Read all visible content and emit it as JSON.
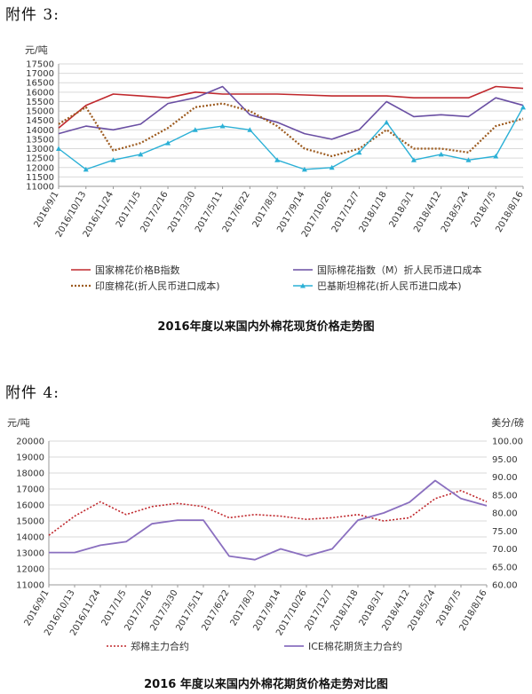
{
  "attachment3": {
    "label": "附件 3:",
    "caption": "2016年度以来国内外棉花现货价格走势图"
  },
  "attachment4": {
    "label": "附件 4:",
    "caption": "2016 年度以来国内外棉花期货价格走势对比图"
  },
  "chart_data": [
    {
      "type": "line",
      "title": "2016年度以来国内外棉花现货价格走势图",
      "ylabel": "元/吨",
      "ylim": [
        11000,
        17500
      ],
      "yticks": [
        11000,
        11500,
        12000,
        12500,
        13000,
        13500,
        14000,
        14500,
        15000,
        15500,
        16000,
        16500,
        17000,
        17500
      ],
      "grid": true,
      "legend": "bottom",
      "x": [
        "2016/9/1",
        "2016/10/13",
        "2016/11/24",
        "2017/1/5",
        "2017/2/16",
        "2017/3/30",
        "2017/5/11",
        "2017/6/22",
        "2017/8/3",
        "2017/9/14",
        "2017/10/26",
        "2017/12/7",
        "2018/1/18",
        "2018/3/1",
        "2018/4/12",
        "2018/5/24",
        "2018/7/5",
        "2018/8/16"
      ],
      "series": [
        {
          "name": "国家棉花价格B指数",
          "color": "#c0282d",
          "values": [
            14100,
            15300,
            15900,
            15800,
            15700,
            16000,
            15900,
            15900,
            15900,
            15850,
            15800,
            15800,
            15800,
            15700,
            15700,
            15700,
            16300,
            16200
          ]
        },
        {
          "name": "国际棉花指数（M）折人民币进口成本",
          "color": "#6a4fa3",
          "values": [
            13800,
            14200,
            14000,
            14300,
            15400,
            15700,
            16300,
            14800,
            14400,
            13800,
            13500,
            14000,
            15500,
            14700,
            14800,
            14700,
            15700,
            15300
          ]
        },
        {
          "name": "印度棉花(折人民币进口成本)",
          "color": "#9c5a1e",
          "values": [
            14300,
            15200,
            12900,
            13300,
            14100,
            15200,
            15400,
            15000,
            14200,
            13000,
            12600,
            13000,
            14000,
            13000,
            13000,
            12800,
            14200,
            14600
          ]
        },
        {
          "name": "巴基斯坦棉花(折人民币进口成本)",
          "color": "#2bb0d6",
          "values": [
            13000,
            11900,
            12400,
            12700,
            13300,
            14000,
            14200,
            14000,
            12400,
            11900,
            12000,
            12800,
            14400,
            12400,
            12700,
            12400,
            12600,
            15200
          ]
        }
      ]
    },
    {
      "type": "line",
      "title": "2016 年度以来国内外棉花期货价格走势对比图",
      "ylabel": "元/吨",
      "y2label": "美分/磅",
      "ylim": [
        11000,
        20000
      ],
      "y2lim": [
        60,
        100
      ],
      "yticks": [
        11000,
        12000,
        13000,
        14000,
        15000,
        16000,
        17000,
        18000,
        19000,
        20000
      ],
      "y2ticks": [
        "60.00",
        "65.00",
        "70.00",
        "75.00",
        "80.00",
        "85.00",
        "90.00",
        "95.00",
        "100.00"
      ],
      "grid": true,
      "legend": "bottom",
      "x": [
        "2016/9/1",
        "2016/10/13",
        "2016/11/24",
        "2017/1/5",
        "2017/2/16",
        "2017/3/30",
        "2017/5/11",
        "2017/6/22",
        "2017/8/3",
        "2017/9/14",
        "2017/10/26",
        "2017/12/7",
        "2018/1/18",
        "2018/3/1",
        "2018/4/12",
        "2018/5/24",
        "2018/7/5",
        "2018/8/16"
      ],
      "series": [
        {
          "name": "郑棉主力合约",
          "axis": "left",
          "color": "#c0282d",
          "values": [
            14100,
            15300,
            16200,
            15400,
            15900,
            16100,
            15900,
            15200,
            15400,
            15300,
            15100,
            15200,
            15400,
            15000,
            15200,
            16400,
            16900,
            16200
          ]
        },
        {
          "name": "ICE棉花期货主力合约",
          "axis": "right",
          "color": "#8a6fbf",
          "values": [
            69,
            69,
            71,
            72,
            77,
            78,
            78,
            68,
            67,
            70,
            68,
            70,
            78,
            80,
            83,
            89,
            84,
            82
          ]
        }
      ]
    }
  ]
}
